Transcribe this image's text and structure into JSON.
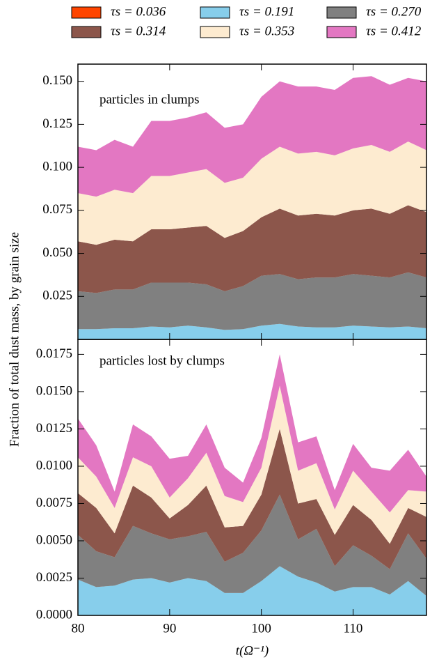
{
  "chart_data": [
    {
      "type": "stacked_area",
      "annotation": "particles in clumps",
      "ylabel": "Fraction of total dust mass, by grain size",
      "x": [
        80,
        82,
        84,
        86,
        88,
        90,
        92,
        94,
        96,
        98,
        100,
        102,
        104,
        106,
        108,
        110,
        112,
        114,
        116,
        118
      ],
      "xlim": [
        80,
        118
      ],
      "xticks": [
        80,
        90,
        100,
        110
      ],
      "ylim": [
        0,
        0.16
      ],
      "yticks": [
        0.025,
        {
          "value": 0.05,
          "label": "0.050"
        },
        0.075,
        {
          "value": 0.1,
          "label": "0.100"
        },
        0.125,
        {
          "value": 0.15,
          "label": "0.150"
        }
      ],
      "series": [
        {
          "name": "τs = 0.036",
          "color": "#ff4500",
          "values": [
            0,
            0,
            0,
            0,
            0,
            0,
            0,
            0,
            0,
            0,
            0,
            0,
            0,
            0,
            0,
            0,
            0,
            0,
            0,
            0
          ]
        },
        {
          "name": "τs = 0.191",
          "color": "#87ceeb",
          "values": [
            0.006,
            0.006,
            0.0065,
            0.0065,
            0.0075,
            0.007,
            0.008,
            0.007,
            0.0055,
            0.006,
            0.008,
            0.009,
            0.0075,
            0.007,
            0.007,
            0.008,
            0.0075,
            0.007,
            0.0075,
            0.0065
          ]
        },
        {
          "name": "τs = 0.270",
          "color": "#808080",
          "values": [
            0.022,
            0.021,
            0.0225,
            0.0225,
            0.0255,
            0.026,
            0.025,
            0.025,
            0.0225,
            0.025,
            0.029,
            0.029,
            0.0275,
            0.029,
            0.029,
            0.03,
            0.0295,
            0.029,
            0.0315,
            0.0295
          ]
        },
        {
          "name": "τs = 0.314",
          "color": "#8c564b",
          "values": [
            0.029,
            0.028,
            0.029,
            0.028,
            0.031,
            0.031,
            0.032,
            0.034,
            0.031,
            0.032,
            0.034,
            0.038,
            0.037,
            0.037,
            0.036,
            0.037,
            0.039,
            0.037,
            0.039,
            0.038
          ]
        },
        {
          "name": "τs = 0.353",
          "color": "#fdebd0",
          "values": [
            0.028,
            0.028,
            0.029,
            0.028,
            0.031,
            0.031,
            0.032,
            0.033,
            0.032,
            0.031,
            0.034,
            0.036,
            0.036,
            0.036,
            0.035,
            0.036,
            0.037,
            0.036,
            0.037,
            0.036
          ]
        },
        {
          "name": "τs = 0.412",
          "color": "#e377c2",
          "values": [
            0.027,
            0.027,
            0.029,
            0.027,
            0.032,
            0.032,
            0.032,
            0.033,
            0.032,
            0.031,
            0.036,
            0.038,
            0.039,
            0.038,
            0.038,
            0.041,
            0.04,
            0.039,
            0.037,
            0.04
          ]
        }
      ]
    },
    {
      "type": "stacked_area",
      "annotation": "particles lost by clumps",
      "xlabel": "t(Ω⁻¹)",
      "x": [
        80,
        82,
        84,
        86,
        88,
        90,
        92,
        94,
        96,
        98,
        100,
        102,
        104,
        106,
        108,
        110,
        112,
        114,
        116,
        118
      ],
      "xlim": [
        80,
        118
      ],
      "xticks": [
        80,
        90,
        100,
        110
      ],
      "ylim": [
        0,
        0.0185
      ],
      "yticks": [
        {
          "value": 0,
          "label": "0.0000"
        },
        0.0025,
        {
          "value": 0.005,
          "label": "0.0050"
        },
        0.0075,
        {
          "value": 0.01,
          "label": "0.0100"
        },
        0.0125,
        {
          "value": 0.015,
          "label": "0.0150"
        },
        0.0175
      ],
      "series": [
        {
          "color": "#ff4500",
          "values": [
            0,
            0,
            0,
            0,
            0,
            0,
            0,
            0,
            0,
            0,
            0,
            0,
            0,
            0,
            0,
            0,
            0,
            0,
            0,
            0
          ]
        },
        {
          "color": "#87ceeb",
          "values": [
            0.0024,
            0.0019,
            0.002,
            0.0024,
            0.0025,
            0.0022,
            0.0025,
            0.0023,
            0.0015,
            0.0015,
            0.0023,
            0.0033,
            0.0026,
            0.0022,
            0.0016,
            0.0019,
            0.0019,
            0.0014,
            0.0023,
            0.0013
          ]
        },
        {
          "color": "#808080",
          "values": [
            0.003,
            0.0024,
            0.0019,
            0.0036,
            0.003,
            0.0029,
            0.0028,
            0.0033,
            0.0021,
            0.0027,
            0.0034,
            0.0048,
            0.0025,
            0.0036,
            0.0017,
            0.0028,
            0.0021,
            0.0017,
            0.0032,
            0.0025
          ]
        },
        {
          "color": "#8c564b",
          "values": [
            0.0028,
            0.0029,
            0.0016,
            0.0027,
            0.0024,
            0.0014,
            0.0021,
            0.0031,
            0.0023,
            0.0018,
            0.0024,
            0.0044,
            0.0024,
            0.002,
            0.0021,
            0.0027,
            0.0024,
            0.0017,
            0.0017,
            0.0028
          ]
        },
        {
          "color": "#fdebd0",
          "values": [
            0.0024,
            0.0021,
            0.0017,
            0.0019,
            0.0021,
            0.0014,
            0.0018,
            0.0022,
            0.0021,
            0.0016,
            0.0018,
            0.0029,
            0.0022,
            0.0024,
            0.0017,
            0.0023,
            0.0019,
            0.0021,
            0.0012,
            0.0017
          ]
        },
        {
          "color": "#e377c2",
          "values": [
            0.0026,
            0.0021,
            0.0011,
            0.0022,
            0.002,
            0.0026,
            0.0015,
            0.0019,
            0.0019,
            0.0013,
            0.002,
            0.0021,
            0.0019,
            0.0018,
            0.0013,
            0.0018,
            0.0016,
            0.0028,
            0.0027,
            0.001
          ]
        }
      ]
    }
  ]
}
